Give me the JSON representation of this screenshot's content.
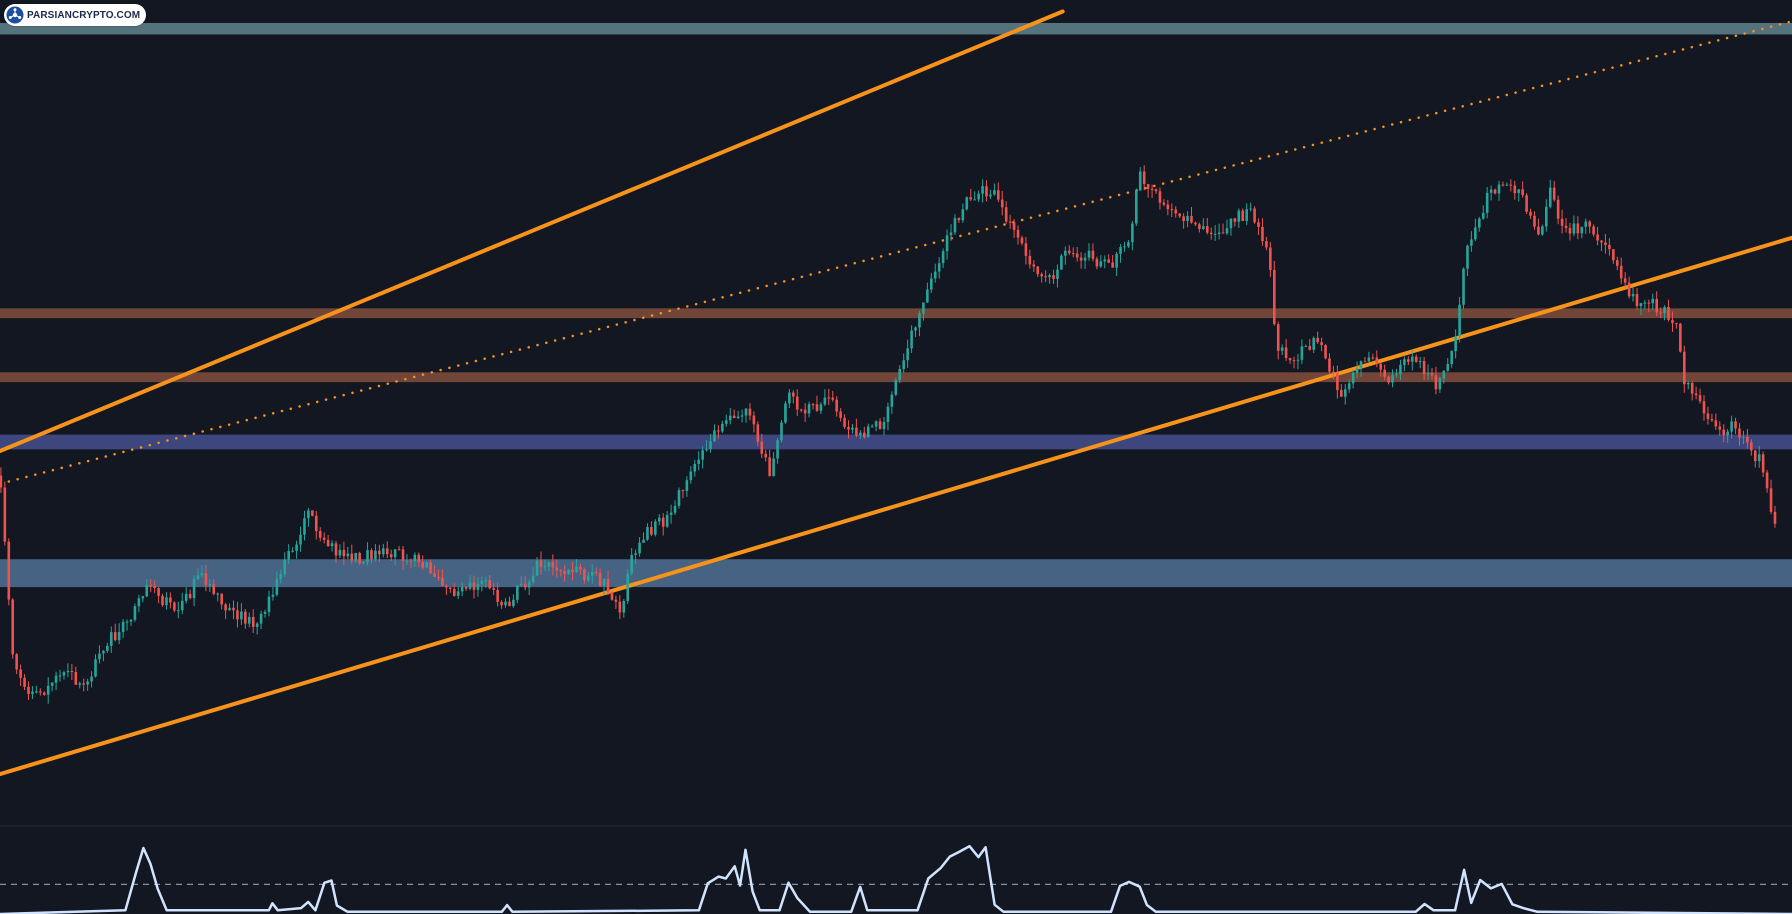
{
  "brand": {
    "name": "PARSIANCRYPTO.COM",
    "logo_icon": "parsiancrypto-logo-icon"
  },
  "colors": {
    "background": "#131722",
    "candle_up": "#26a69a",
    "candle_down": "#ef5350",
    "trendline": "#f7931a",
    "zone_teal": "#5b7c86",
    "zone_brown": "#7a4a3a",
    "zone_purple": "#414c86",
    "zone_steel": "#4b6a8c",
    "oscillator_line": "#d1e4ff",
    "oscillator_threshold": "#8a8f9a",
    "pane_divider": "#2a2e39"
  },
  "chart_data": {
    "type": "candlestick",
    "title": "",
    "xlabel": "",
    "ylabel": "",
    "grid": false,
    "legend": "none",
    "xlim": [
      0,
      1000
    ],
    "ylim": [
      0,
      1000
    ],
    "price_path": [
      [
        0,
        420
      ],
      [
        8,
        180
      ],
      [
        20,
        150
      ],
      [
        35,
        178
      ],
      [
        48,
        165
      ],
      [
        55,
        205
      ],
      [
        70,
        240
      ],
      [
        82,
        283
      ],
      [
        100,
        255
      ],
      [
        112,
        300
      ],
      [
        125,
        262
      ],
      [
        143,
        235
      ],
      [
        158,
        308
      ],
      [
        172,
        375
      ],
      [
        185,
        330
      ],
      [
        200,
        318
      ],
      [
        214,
        332
      ],
      [
        228,
        320
      ],
      [
        240,
        305
      ],
      [
        252,
        272
      ],
      [
        262,
        286
      ],
      [
        270,
        292
      ],
      [
        282,
        258
      ],
      [
        300,
        312
      ],
      [
        320,
        305
      ],
      [
        337,
        290
      ],
      [
        347,
        255
      ],
      [
        352,
        320
      ],
      [
        360,
        348
      ],
      [
        372,
        368
      ],
      [
        388,
        432
      ],
      [
        405,
        492
      ],
      [
        418,
        505
      ],
      [
        430,
        415
      ],
      [
        440,
        520
      ],
      [
        448,
        495
      ],
      [
        462,
        515
      ],
      [
        477,
        470
      ],
      [
        487,
        478
      ],
      [
        492,
        485
      ],
      [
        500,
        535
      ],
      [
        512,
        610
      ],
      [
        526,
        695
      ],
      [
        538,
        752
      ],
      [
        547,
        770
      ],
      [
        555,
        760
      ],
      [
        565,
        725
      ],
      [
        575,
        670
      ],
      [
        585,
        655
      ],
      [
        595,
        695
      ],
      [
        610,
        685
      ],
      [
        620,
        675
      ],
      [
        630,
        710
      ],
      [
        636,
        785
      ],
      [
        646,
        760
      ],
      [
        655,
        745
      ],
      [
        668,
        725
      ],
      [
        680,
        712
      ],
      [
        690,
        735
      ],
      [
        698,
        738
      ],
      [
        708,
        693
      ],
      [
        712,
        575
      ],
      [
        720,
        560
      ],
      [
        735,
        585
      ],
      [
        748,
        520
      ],
      [
        762,
        565
      ],
      [
        775,
        540
      ],
      [
        790,
        565
      ],
      [
        802,
        530
      ],
      [
        812,
        580
      ],
      [
        818,
        700
      ],
      [
        830,
        758
      ],
      [
        842,
        780
      ],
      [
        848,
        765
      ],
      [
        858,
        710
      ],
      [
        865,
        765
      ],
      [
        872,
        715
      ],
      [
        885,
        725
      ],
      [
        898,
        695
      ],
      [
        906,
        660
      ],
      [
        912,
        630
      ],
      [
        922,
        630
      ],
      [
        935,
        608
      ],
      [
        940,
        535
      ],
      [
        950,
        498
      ],
      [
        962,
        470
      ],
      [
        968,
        485
      ],
      [
        975,
        455
      ],
      [
        982,
        440
      ],
      [
        986,
        410
      ],
      [
        989,
        356
      ],
      [
        992,
        355
      ]
    ],
    "trendlines": [
      {
        "style": "solid",
        "from": [
          0,
          450
        ],
        "to": [
          593,
          986
        ]
      },
      {
        "style": "solid",
        "from": [
          0,
          56
        ],
        "to": [
          1000,
          710
        ]
      },
      {
        "style": "dotted",
        "from": [
          0,
          410
        ],
        "to": [
          1000,
          974
        ]
      }
    ],
    "zones": [
      {
        "color": "zone_teal",
        "low": 958,
        "high": 972
      },
      {
        "color": "zone_brown",
        "low": 612,
        "high": 624
      },
      {
        "color": "zone_brown",
        "low": 534,
        "high": 546
      },
      {
        "color": "zone_purple",
        "low": 452,
        "high": 470
      },
      {
        "color": "zone_steel",
        "low": 284,
        "high": 318
      }
    ],
    "oscillator": {
      "ylim": [
        0,
        100
      ],
      "threshold": 40,
      "points": [
        [
          0,
          0
        ],
        [
          70,
          5
        ],
        [
          76,
          55
        ],
        [
          80,
          90
        ],
        [
          84,
          68
        ],
        [
          88,
          35
        ],
        [
          93,
          5
        ],
        [
          150,
          5
        ],
        [
          152,
          15
        ],
        [
          155,
          5
        ],
        [
          168,
          8
        ],
        [
          172,
          18
        ],
        [
          176,
          5
        ],
        [
          181,
          40
        ],
        [
          185,
          45
        ],
        [
          188,
          10
        ],
        [
          194,
          3
        ],
        [
          280,
          3
        ],
        [
          283,
          10
        ],
        [
          286,
          3
        ],
        [
          390,
          5
        ],
        [
          395,
          40
        ],
        [
          401,
          52
        ],
        [
          405,
          48
        ],
        [
          410,
          65
        ],
        [
          413,
          40
        ],
        [
          416,
          85
        ],
        [
          420,
          30
        ],
        [
          424,
          5
        ],
        [
          435,
          5
        ],
        [
          440,
          42
        ],
        [
          445,
          22
        ],
        [
          452,
          3
        ],
        [
          475,
          3
        ],
        [
          480,
          35
        ],
        [
          484,
          5
        ],
        [
          512,
          5
        ],
        [
          518,
          50
        ],
        [
          525,
          65
        ],
        [
          530,
          80
        ],
        [
          535,
          85
        ],
        [
          541,
          90
        ],
        [
          546,
          78
        ],
        [
          550,
          90
        ],
        [
          555,
          15
        ],
        [
          560,
          3
        ],
        [
          620,
          3
        ],
        [
          625,
          40
        ],
        [
          630,
          42
        ],
        [
          636,
          38
        ],
        [
          640,
          10
        ],
        [
          645,
          3
        ],
        [
          790,
          3
        ],
        [
          795,
          15
        ],
        [
          800,
          5
        ],
        [
          812,
          5
        ],
        [
          817,
          60
        ],
        [
          821,
          15
        ],
        [
          826,
          45
        ],
        [
          832,
          35
        ],
        [
          838,
          42
        ],
        [
          844,
          15
        ],
        [
          850,
          8
        ],
        [
          858,
          3
        ],
        [
          1000,
          0
        ]
      ]
    }
  }
}
